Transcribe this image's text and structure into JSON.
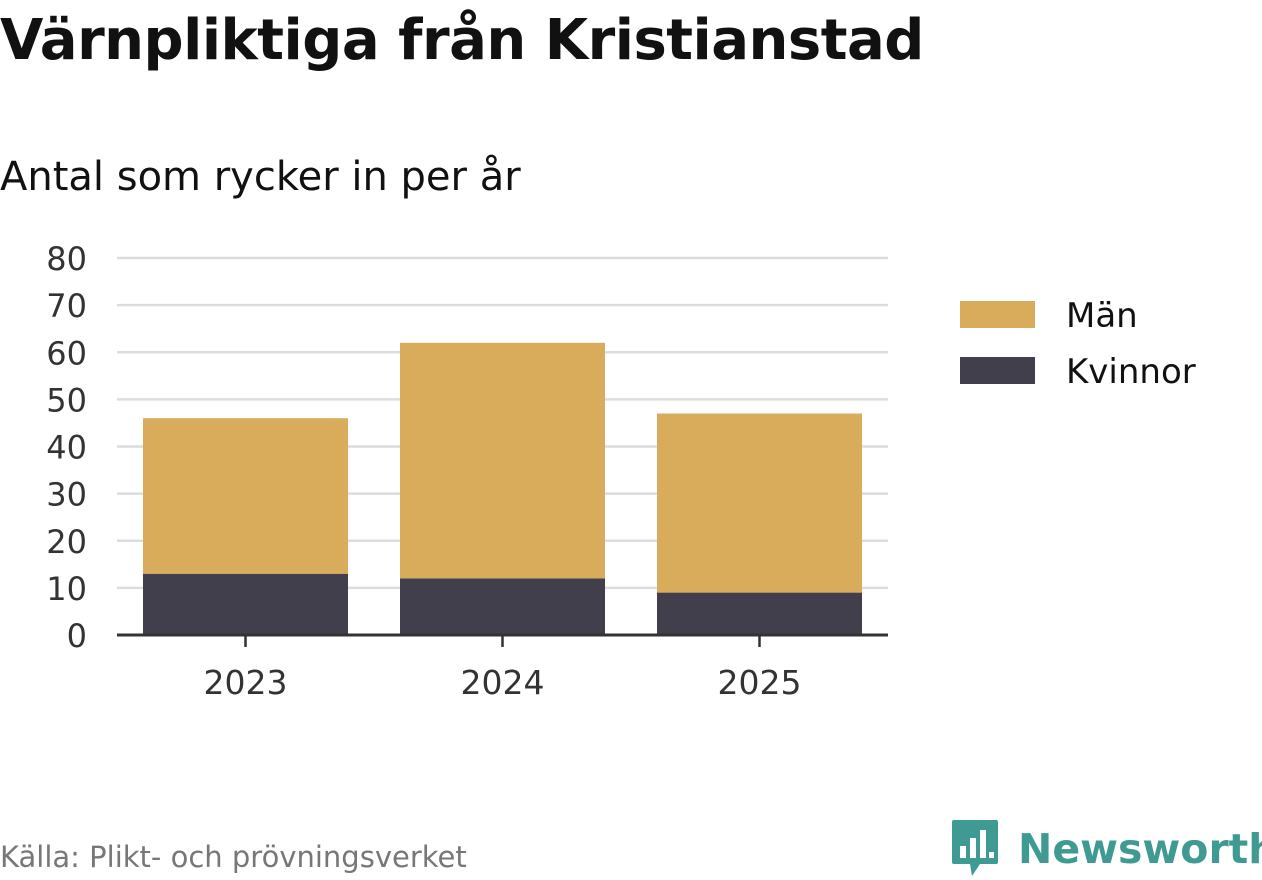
{
  "header": {
    "title": "Värnpliktiga från Kristianstad",
    "subtitle": "Antal som rycker in per år"
  },
  "footer": {
    "source": "Källa: Plikt- och prövningsverket",
    "brand": "Newsworthy",
    "brand_icon": "newsworthy-logo-icon",
    "brand_color": "#3e9a92"
  },
  "chart_data": {
    "type": "bar",
    "stacked": true,
    "categories": [
      "2023",
      "2024",
      "2025"
    ],
    "series": [
      {
        "name": "Kvinnor",
        "values": [
          13,
          12,
          9
        ],
        "color": "#423f4d"
      },
      {
        "name": "Män",
        "values": [
          33,
          50,
          38
        ],
        "color": "#d9ac5b"
      }
    ],
    "legend_order": [
      "Män",
      "Kvinnor"
    ],
    "ylim": [
      0,
      80
    ],
    "yticks": [
      0,
      10,
      20,
      30,
      40,
      50,
      60,
      70,
      80
    ],
    "grid": true,
    "legend_position": "right",
    "xlabel": "",
    "ylabel": ""
  }
}
